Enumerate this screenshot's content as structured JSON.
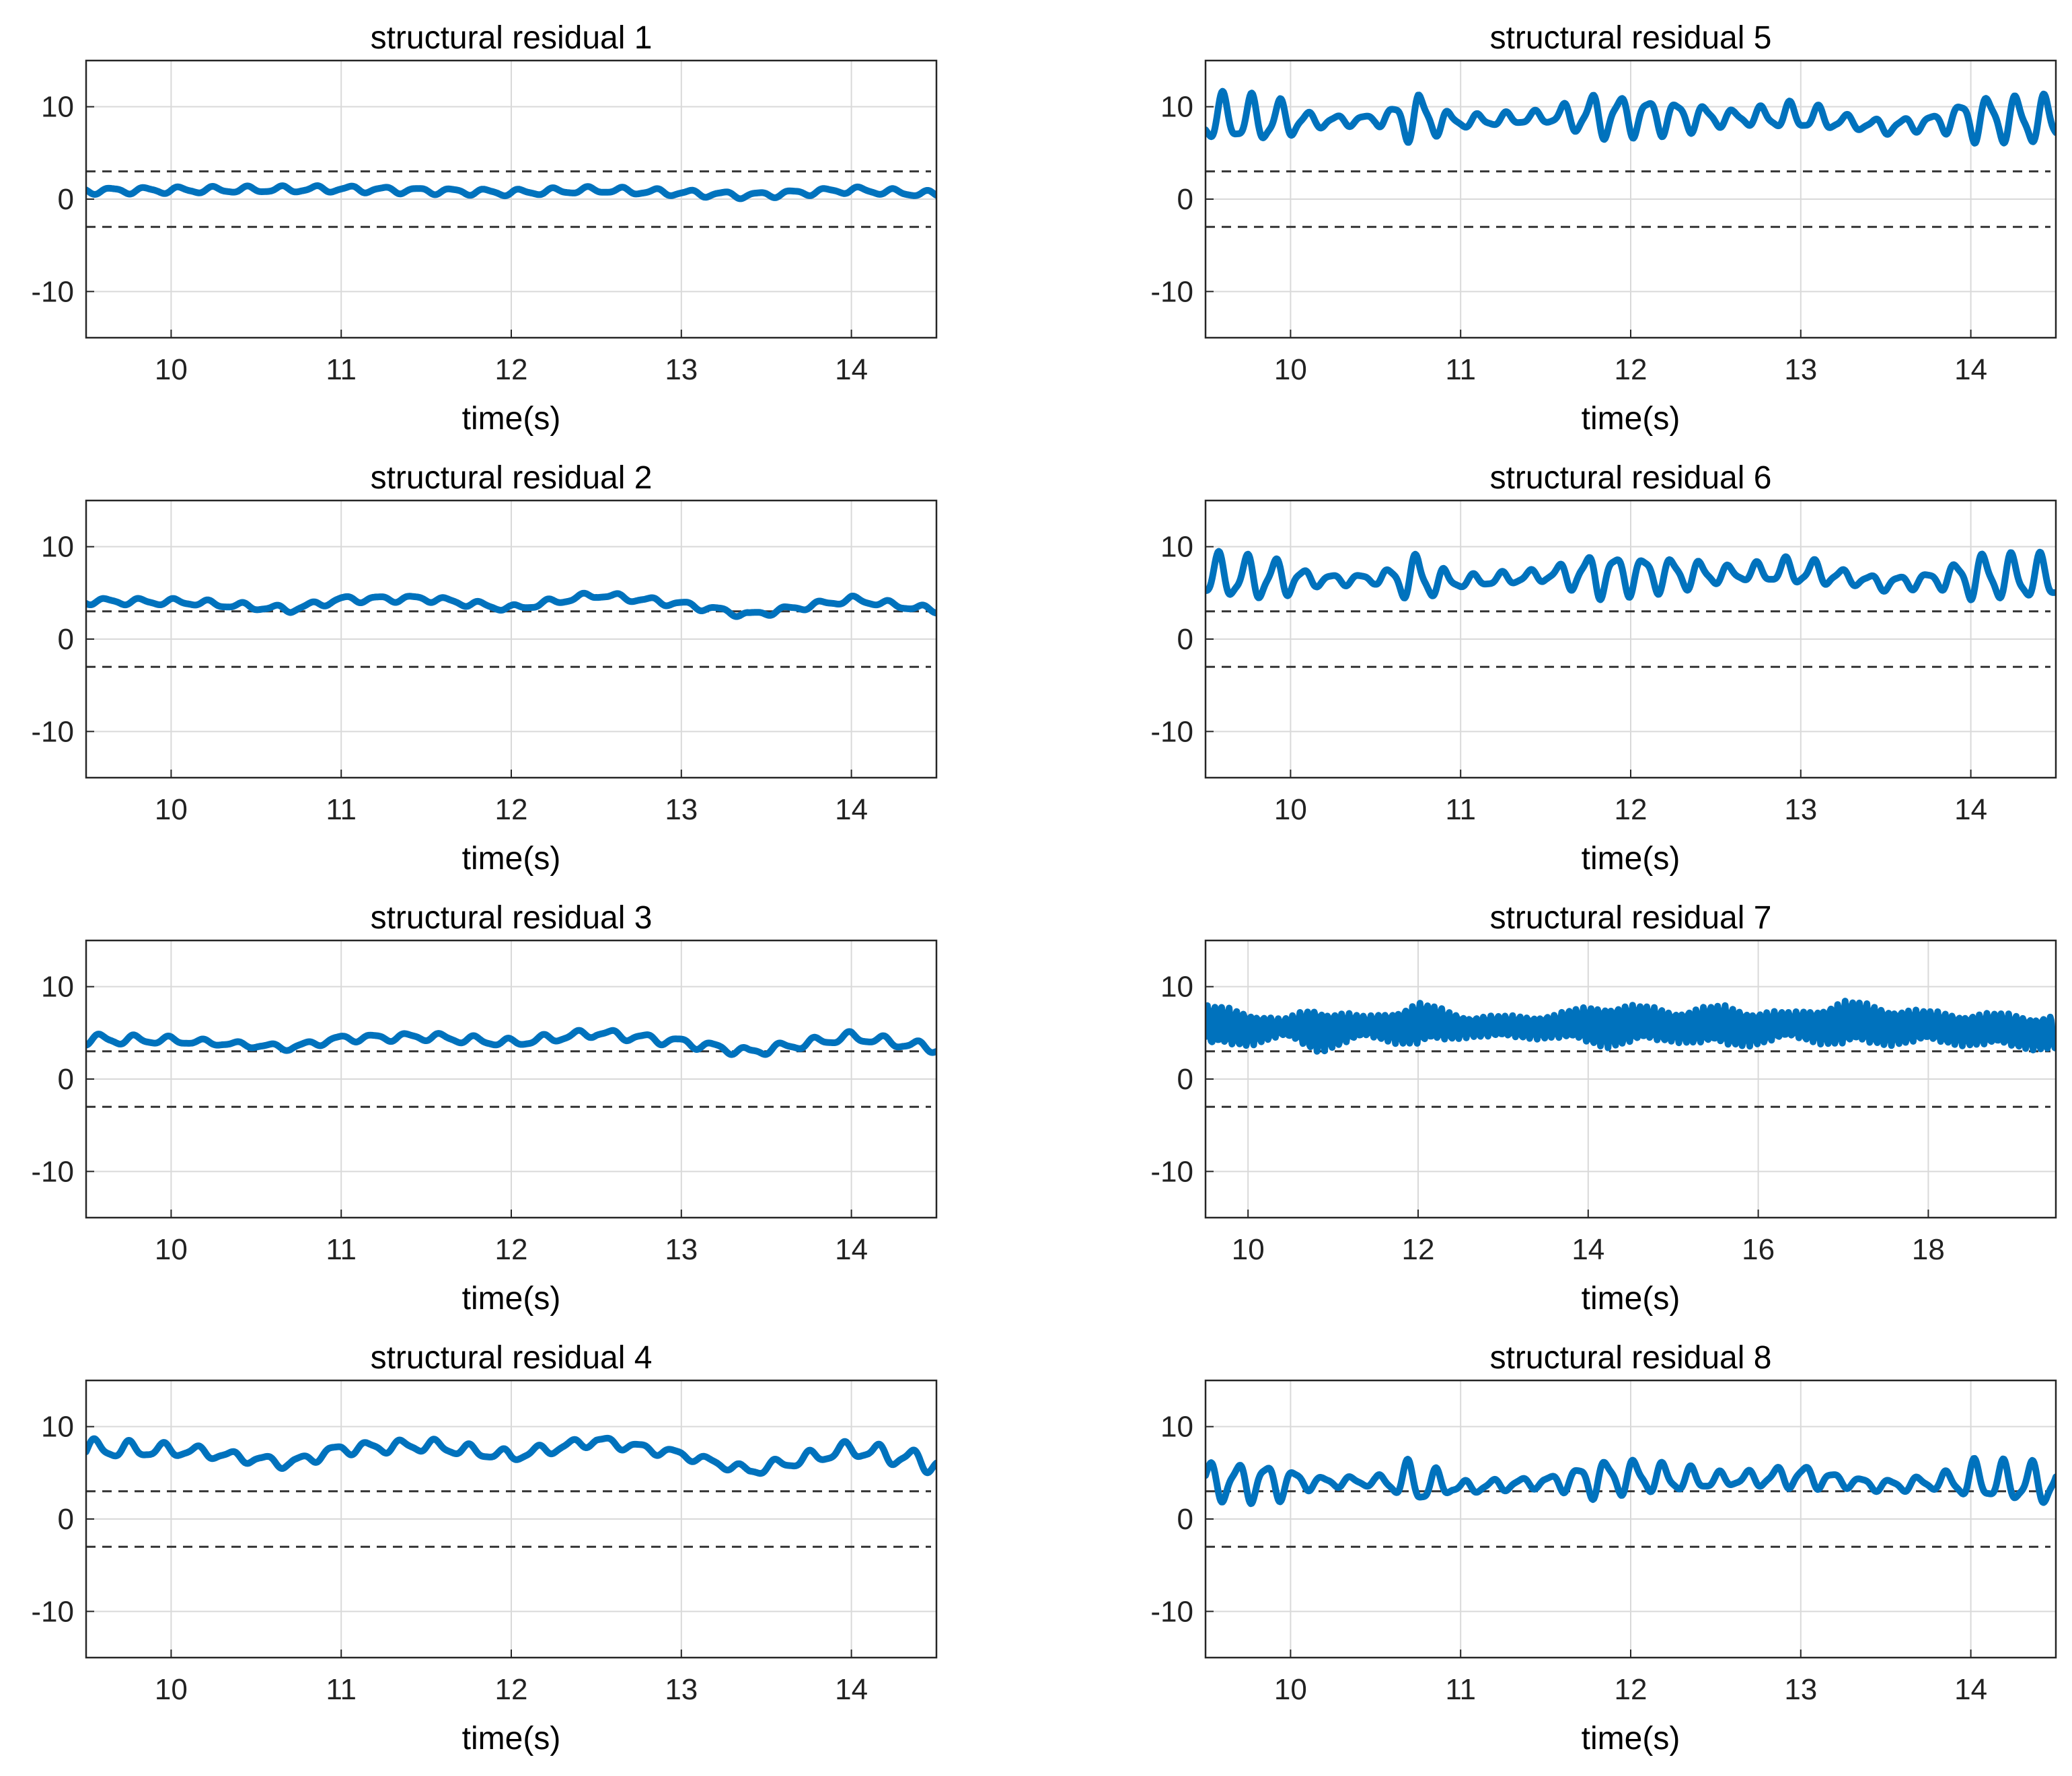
{
  "figure": {
    "series_color": "#0072BD",
    "threshold_color": "#333333",
    "grid_color": "#d9d9d9"
  },
  "chart_data": [
    {
      "type": "line",
      "title": "structural residual 1",
      "xlabel": "time(s)",
      "ylabel": "",
      "xlim": [
        9.5,
        14.5
      ],
      "ylim": [
        -15,
        15
      ],
      "xticks": [
        10,
        11,
        12,
        13,
        14
      ],
      "yticks": [
        -10,
        0,
        10
      ],
      "thresholds": [
        3,
        -3
      ],
      "grid": true,
      "signal": {
        "base": [
          [
            9.5,
            0.9
          ],
          [
            11,
            1.1
          ],
          [
            12,
            0.7
          ],
          [
            12.5,
            1.0
          ],
          [
            13.4,
            0.4
          ],
          [
            14,
            1.0
          ],
          [
            14.5,
            0.5
          ]
        ],
        "osc": [
          [
            9.5,
            0.4
          ],
          [
            14.5,
            0.4
          ]
        ],
        "freq": 5
      }
    },
    {
      "type": "line",
      "title": "structural residual 2",
      "xlabel": "time(s)",
      "ylabel": "",
      "xlim": [
        9.5,
        14.5
      ],
      "ylim": [
        -15,
        15
      ],
      "xticks": [
        10,
        11,
        12,
        13,
        14
      ],
      "yticks": [
        -10,
        0,
        10
      ],
      "thresholds": [
        3,
        -3
      ],
      "grid": true,
      "signal": {
        "base": [
          [
            9.5,
            4.1
          ],
          [
            10.1,
            4.0
          ],
          [
            10.7,
            3.2
          ],
          [
            11.0,
            4.3
          ],
          [
            11.5,
            4.4
          ],
          [
            12.0,
            3.3
          ],
          [
            12.5,
            4.8
          ],
          [
            13.0,
            3.8
          ],
          [
            13.4,
            2.6
          ],
          [
            14.0,
            4.3
          ],
          [
            14.5,
            3.1
          ]
        ],
        "osc": [
          [
            9.5,
            0.4
          ],
          [
            14.5,
            0.4
          ]
        ],
        "freq": 5
      }
    },
    {
      "type": "line",
      "title": "structural residual 3",
      "xlabel": "time(s)",
      "ylabel": "",
      "xlim": [
        9.5,
        14.5
      ],
      "ylim": [
        -15,
        15
      ],
      "xticks": [
        10,
        11,
        12,
        13,
        14
      ],
      "yticks": [
        -10,
        0,
        10
      ],
      "thresholds": [
        3,
        -3
      ],
      "grid": true,
      "signal": {
        "base": [
          [
            9.5,
            4.3
          ],
          [
            10.0,
            4.2
          ],
          [
            10.7,
            3.4
          ],
          [
            11.0,
            4.4
          ],
          [
            11.5,
            4.6
          ],
          [
            12.0,
            3.9
          ],
          [
            12.5,
            5.0
          ],
          [
            13.0,
            4.0
          ],
          [
            13.4,
            2.9
          ],
          [
            14.0,
            4.6
          ],
          [
            14.5,
            3.3
          ]
        ],
        "osc": [
          [
            9.5,
            0.7
          ],
          [
            10.3,
            0.3
          ],
          [
            11.5,
            0.5
          ],
          [
            14.5,
            0.6
          ]
        ],
        "freq": 5
      }
    },
    {
      "type": "line",
      "title": "structural residual 4",
      "xlabel": "time(s)",
      "ylabel": "",
      "xlim": [
        9.5,
        14.5
      ],
      "ylim": [
        -15,
        15
      ],
      "xticks": [
        10,
        11,
        12,
        13,
        14
      ],
      "yticks": [
        -10,
        0,
        10
      ],
      "thresholds": [
        3,
        -3
      ],
      "grid": true,
      "signal": {
        "base": [
          [
            9.5,
            7.6
          ],
          [
            10.1,
            7.4
          ],
          [
            10.7,
            6.0
          ],
          [
            11.0,
            7.6
          ],
          [
            11.5,
            8.0
          ],
          [
            12.0,
            6.8
          ],
          [
            12.5,
            8.5
          ],
          [
            13.0,
            7.0
          ],
          [
            13.4,
            5.2
          ],
          [
            14.0,
            7.6
          ],
          [
            14.5,
            6.0
          ]
        ],
        "osc": [
          [
            9.5,
            1.2
          ],
          [
            10.3,
            0.6
          ],
          [
            11.5,
            0.8
          ],
          [
            13.2,
            0.5
          ],
          [
            14.5,
            1.3
          ]
        ],
        "freq": 5
      }
    },
    {
      "type": "line",
      "title": "structural residual 5",
      "xlabel": "time(s)",
      "ylabel": "",
      "xlim": [
        9.5,
        14.5
      ],
      "ylim": [
        -15,
        15
      ],
      "xticks": [
        10,
        11,
        12,
        13,
        14
      ],
      "yticks": [
        -10,
        0,
        10
      ],
      "thresholds": [
        3,
        -3
      ],
      "grid": true,
      "signal": {
        "base": [
          [
            9.5,
            8.8
          ],
          [
            10.2,
            8.4
          ],
          [
            10.7,
            8.8
          ],
          [
            11.0,
            8.4
          ],
          [
            11.5,
            8.9
          ],
          [
            12.0,
            9.0
          ],
          [
            12.5,
            8.8
          ],
          [
            13.0,
            9.0
          ],
          [
            13.5,
            7.8
          ],
          [
            14.0,
            8.8
          ],
          [
            14.5,
            8.5
          ]
        ],
        "osc": [
          [
            9.5,
            3.0
          ],
          [
            9.9,
            2.8
          ],
          [
            10.15,
            0.8
          ],
          [
            10.5,
            0.6
          ],
          [
            10.75,
            3.4
          ],
          [
            10.95,
            0.8
          ],
          [
            11.5,
            0.8
          ],
          [
            11.8,
            2.8
          ],
          [
            12.3,
            2.0
          ],
          [
            12.6,
            0.9
          ],
          [
            13.0,
            1.8
          ],
          [
            13.3,
            0.8
          ],
          [
            13.8,
            1.0
          ],
          [
            14.0,
            2.8
          ],
          [
            14.5,
            3.0
          ]
        ],
        "freq": 6
      }
    },
    {
      "type": "line",
      "title": "structural residual 6",
      "xlabel": "time(s)",
      "ylabel": "",
      "xlim": [
        9.5,
        14.5
      ],
      "ylim": [
        -15,
        15
      ],
      "xticks": [
        10,
        11,
        12,
        13,
        14
      ],
      "yticks": [
        -10,
        0,
        10
      ],
      "thresholds": [
        3,
        -3
      ],
      "grid": true,
      "signal": {
        "base": [
          [
            9.5,
            6.8
          ],
          [
            10.2,
            6.4
          ],
          [
            10.7,
            6.6
          ],
          [
            11.0,
            6.2
          ],
          [
            11.5,
            6.9
          ],
          [
            12.0,
            7.0
          ],
          [
            12.5,
            7.0
          ],
          [
            13.0,
            7.4
          ],
          [
            13.5,
            6.0
          ],
          [
            14.0,
            6.8
          ],
          [
            14.5,
            6.6
          ]
        ],
        "osc": [
          [
            9.5,
            2.8
          ],
          [
            9.9,
            2.6
          ],
          [
            10.15,
            0.8
          ],
          [
            10.5,
            0.6
          ],
          [
            10.75,
            3.2
          ],
          [
            10.95,
            0.8
          ],
          [
            11.5,
            0.8
          ],
          [
            11.8,
            2.8
          ],
          [
            12.3,
            2.0
          ],
          [
            12.6,
            0.9
          ],
          [
            13.0,
            1.8
          ],
          [
            13.3,
            0.8
          ],
          [
            13.8,
            1.0
          ],
          [
            14.0,
            2.8
          ],
          [
            14.5,
            2.8
          ]
        ],
        "freq": 6
      }
    },
    {
      "type": "line",
      "title": "structural residual 7",
      "xlabel": "time(s)",
      "ylabel": "",
      "xlim": [
        9.5,
        19.5
      ],
      "ylim": [
        -15,
        15
      ],
      "xticks": [
        10,
        12,
        14,
        16,
        18
      ],
      "yticks": [
        -10,
        0,
        10
      ],
      "thresholds": [
        3,
        -3
      ],
      "grid": true,
      "signal": {
        "base": [
          [
            9.5,
            5.6
          ],
          [
            11.0,
            5.4
          ],
          [
            12.0,
            5.9
          ],
          [
            13.0,
            5.6
          ],
          [
            14.5,
            5.9
          ],
          [
            16.0,
            5.6
          ],
          [
            17.0,
            6.0
          ],
          [
            19.5,
            5.0
          ]
        ],
        "osc": [
          [
            9.5,
            2.5
          ],
          [
            10.0,
            2.0
          ],
          [
            10.4,
            1.0
          ],
          [
            10.8,
            2.6
          ],
          [
            11.4,
            1.2
          ],
          [
            12.0,
            2.5
          ],
          [
            12.6,
            1.2
          ],
          [
            13.6,
            1.4
          ],
          [
            14.2,
            2.5
          ],
          [
            15.0,
            1.8
          ],
          [
            15.6,
            2.4
          ],
          [
            16.4,
            1.5
          ],
          [
            17.0,
            2.6
          ],
          [
            18.0,
            1.8
          ],
          [
            19.5,
            2.0
          ]
        ],
        "freq": 12
      }
    },
    {
      "type": "line",
      "title": "structural residual 8",
      "xlabel": "time(s)",
      "ylabel": "",
      "xlim": [
        9.5,
        14.5
      ],
      "ylim": [
        -15,
        15
      ],
      "xticks": [
        10,
        11,
        12,
        13,
        14
      ],
      "yticks": [
        -10,
        0,
        10
      ],
      "thresholds": [
        3,
        -3
      ],
      "grid": true,
      "signal": {
        "base": [
          [
            9.5,
            4.0
          ],
          [
            10.2,
            4.0
          ],
          [
            10.7,
            4.1
          ],
          [
            11.0,
            3.4
          ],
          [
            11.5,
            4.0
          ],
          [
            12.0,
            4.6
          ],
          [
            12.5,
            4.2
          ],
          [
            13.0,
            4.6
          ],
          [
            13.5,
            3.6
          ],
          [
            14.0,
            4.2
          ],
          [
            14.5,
            3.8
          ]
        ],
        "osc": [
          [
            9.5,
            2.4
          ],
          [
            9.9,
            2.4
          ],
          [
            10.15,
            0.7
          ],
          [
            10.5,
            0.6
          ],
          [
            10.75,
            3.0
          ],
          [
            10.95,
            0.8
          ],
          [
            11.5,
            0.7
          ],
          [
            11.8,
            2.4
          ],
          [
            12.3,
            1.6
          ],
          [
            12.6,
            0.8
          ],
          [
            13.0,
            1.5
          ],
          [
            13.3,
            0.7
          ],
          [
            13.8,
            0.9
          ],
          [
            14.0,
            2.4
          ],
          [
            14.5,
            2.6
          ]
        ],
        "freq": 6
      }
    }
  ]
}
